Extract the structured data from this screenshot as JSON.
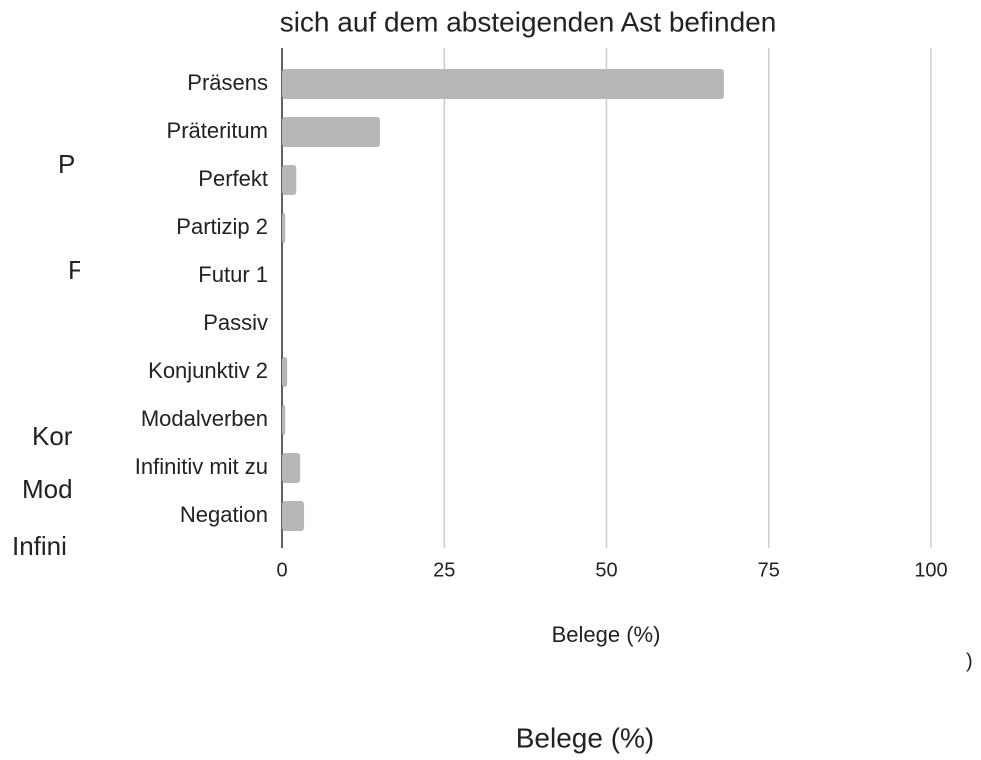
{
  "chart_data": {
    "type": "barh",
    "title": "sich auf dem absteigenden Ast befinden",
    "categories": [
      "Präsens",
      "Präteritum",
      "Perfekt",
      "Partizip 2",
      "Futur 1",
      "Passiv",
      "Konjunktiv 2",
      "Modalverben",
      "Infinitiv mit zu",
      "Negation"
    ],
    "values": [
      68.1,
      15.1,
      2.2,
      0.5,
      0,
      0,
      0.8,
      0.5,
      2.8,
      3.4
    ],
    "color": "#b7b7b7",
    "xlabel": "Belege (%)",
    "xlim": [
      0,
      100
    ],
    "xticks": [
      0,
      25,
      50,
      75,
      100
    ],
    "grid": true
  },
  "background_texts": [
    "P",
    "F",
    "Kor",
    "Mod",
    "Infini",
    ")",
    "Belege (%)"
  ]
}
